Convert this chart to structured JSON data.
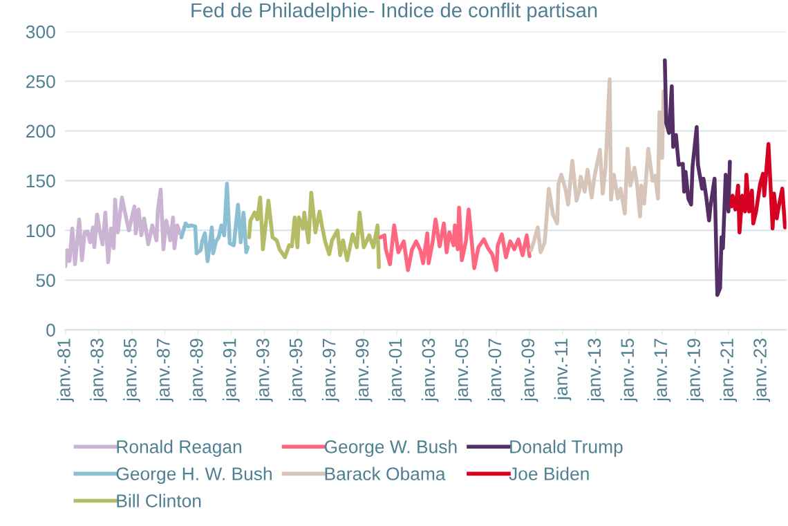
{
  "chart_data": {
    "type": "line",
    "title": "Fed de Philadelphie- Indice de conflit partisan",
    "ylim": [
      0,
      300
    ],
    "yticks": [
      0,
      50,
      100,
      150,
      200,
      250,
      300
    ],
    "xlim": [
      "1981-01",
      "2024-07"
    ],
    "xticks": [
      {
        "value": "1981-01",
        "label": "janv.-81"
      },
      {
        "value": "1983-01",
        "label": "janv.-83"
      },
      {
        "value": "1985-01",
        "label": "janv.-85"
      },
      {
        "value": "1987-01",
        "label": "janv.-87"
      },
      {
        "value": "1989-01",
        "label": "janv.-89"
      },
      {
        "value": "1991-01",
        "label": "janv.-91"
      },
      {
        "value": "1993-01",
        "label": "janv.-93"
      },
      {
        "value": "1995-01",
        "label": "janv.-95"
      },
      {
        "value": "1997-01",
        "label": "janv.-97"
      },
      {
        "value": "1999-01",
        "label": "janv.-99"
      },
      {
        "value": "2001-01",
        "label": "janv.-01"
      },
      {
        "value": "2003-01",
        "label": "janv.-03"
      },
      {
        "value": "2005-01",
        "label": "janv.-05"
      },
      {
        "value": "2007-01",
        "label": "janv.-07"
      },
      {
        "value": "2009-01",
        "label": "janv.-09"
      },
      {
        "value": "2011-01",
        "label": "janv.-11"
      },
      {
        "value": "2013-01",
        "label": "janv.-13"
      },
      {
        "value": "2015-01",
        "label": "janv.-15"
      },
      {
        "value": "2017-01",
        "label": "janv.-17"
      },
      {
        "value": "2019-01",
        "label": "janv.-19"
      },
      {
        "value": "2021-01",
        "label": "janv.-21"
      },
      {
        "value": "2023-01",
        "label": "janv.-23"
      }
    ],
    "grid": "y",
    "legend": "bottom",
    "marker": "none",
    "line_style": "solid",
    "series": [
      {
        "name": "Ronald Reagan",
        "color": "#cbb3d4",
        "x": [
          "1981-01",
          "1981-02",
          "1981-04",
          "1981-06",
          "1981-08",
          "1981-11",
          "1982-01",
          "1982-03",
          "1982-05",
          "1982-07",
          "1982-09",
          "1982-10",
          "1982-12",
          "1983-02",
          "1983-04",
          "1983-06",
          "1983-08",
          "1983-10",
          "1983-12",
          "1984-01",
          "1984-03",
          "1984-06",
          "1984-08",
          "1984-11",
          "1985-03",
          "1985-04",
          "1985-06",
          "1985-08",
          "1985-10",
          "1986-01",
          "1986-04",
          "1986-07",
          "1986-08",
          "1986-10",
          "1986-12",
          "1987-02",
          "1987-05",
          "1987-07",
          "1987-08",
          "1987-10",
          "1987-12"
        ],
        "values": [
          64,
          80,
          69,
          102,
          66,
          111,
          70,
          98,
          99,
          88,
          103,
          83,
          116,
          98,
          86,
          118,
          68,
          102,
          82,
          131,
          98,
          133,
          119,
          100,
          124,
          97,
          121,
          95,
          112,
          86,
          105,
          90,
          121,
          141,
          81,
          110,
          90,
          113,
          82,
          105,
          97
        ]
      },
      {
        "name": "George H. W. Bush",
        "color": "#8bbfd1",
        "x": [
          "1988-01",
          "1988-04",
          "1988-06",
          "1988-08",
          "1988-11",
          "1988-12",
          "1989-03",
          "1989-04",
          "1989-06",
          "1989-08",
          "1989-11",
          "1989-12",
          "1990-02",
          "1990-04",
          "1990-06",
          "1990-08",
          "1990-10",
          "1990-12",
          "1991-03",
          "1991-06",
          "1991-08",
          "1991-10",
          "1991-12",
          "1992-01"
        ],
        "values": [
          93,
          107,
          104,
          105,
          104,
          77,
          80,
          89,
          97,
          69,
          103,
          77,
          89,
          93,
          105,
          95,
          147,
          87,
          85,
          126,
          88,
          118,
          78,
          83
        ]
      },
      {
        "name": "Bill Clinton",
        "color": "#b4bd65",
        "x": [
          "1992-02",
          "1992-03",
          "1992-06",
          "1992-08",
          "1992-10",
          "1992-12",
          "1993-04",
          "1993-07",
          "1993-10",
          "1993-12",
          "1994-04",
          "1994-07",
          "1994-09",
          "1994-11",
          "1995-01",
          "1995-02",
          "1995-05",
          "1995-06",
          "1995-09",
          "1995-11",
          "1996-02",
          "1996-05",
          "1996-07",
          "1996-09",
          "1996-12",
          "1997-02",
          "1997-06",
          "1997-08",
          "1997-10",
          "1998-01",
          "1998-05",
          "1998-08",
          "1998-10",
          "1999-01",
          "1999-05",
          "1999-08",
          "1999-11",
          "1999-12"
        ],
        "values": [
          93,
          110,
          118,
          111,
          133,
          81,
          130,
          93,
          90,
          81,
          73,
          85,
          84,
          113,
          83,
          113,
          102,
          118,
          88,
          138,
          98,
          119,
          103,
          89,
          76,
          90,
          100,
          75,
          90,
          70,
          96,
          83,
          118,
          83,
          95,
          83,
          105,
          63
        ]
      },
      {
        "name": "George W. Bush",
        "color": "#ff6680",
        "x": [
          "2000-01",
          "2000-04",
          "2000-05",
          "2000-08",
          "2000-11",
          "2001-02",
          "2001-06",
          "2001-09",
          "2001-12",
          "2002-03",
          "2002-06",
          "2002-08",
          "2002-11",
          "2002-12",
          "2003-03",
          "2003-05",
          "2003-08",
          "2003-11",
          "2004-01",
          "2004-03",
          "2004-06",
          "2004-07",
          "2004-09",
          "2004-10",
          "2004-12",
          "2005-03",
          "2005-05",
          "2005-09",
          "2005-12",
          "2006-04",
          "2006-07",
          "2006-10",
          "2007-01",
          "2007-02",
          "2007-05",
          "2007-08",
          "2007-11",
          "2008-02",
          "2008-05",
          "2008-08",
          "2008-11",
          "2009-01"
        ],
        "values": [
          93,
          95,
          81,
          66,
          105,
          78,
          89,
          60,
          81,
          89,
          80,
          67,
          97,
          67,
          89,
          111,
          84,
          107,
          78,
          98,
          85,
          105,
          81,
          123,
          70,
          89,
          121,
          62,
          83,
          91,
          82,
          76,
          60,
          85,
          96,
          73,
          89,
          81,
          91,
          75,
          95,
          74
        ]
      },
      {
        "name": "Barack Obama",
        "color": "#d6c5b8",
        "x": [
          "2009-02",
          "2009-04",
          "2009-07",
          "2009-09",
          "2009-12",
          "2010-03",
          "2010-06",
          "2010-09",
          "2010-10",
          "2010-12",
          "2011-03",
          "2011-05",
          "2011-08",
          "2011-11",
          "2012-01",
          "2012-02",
          "2012-05",
          "2012-07",
          "2012-10",
          "2012-12",
          "2013-04",
          "2013-06",
          "2013-08",
          "2013-11",
          "2013-12",
          "2014-02",
          "2014-05",
          "2014-07",
          "2014-10",
          "2014-12",
          "2015-02",
          "2015-05",
          "2015-07",
          "2015-09",
          "2015-10",
          "2015-12",
          "2016-03",
          "2016-06",
          "2016-08",
          "2016-10",
          "2016-11",
          "2017-01",
          "2017-02"
        ],
        "values": [
          80,
          88,
          103,
          78,
          88,
          142,
          116,
          107,
          147,
          156,
          142,
          126,
          170,
          130,
          140,
          154,
          139,
          161,
          133,
          154,
          181,
          137,
          163,
          252,
          131,
          156,
          132,
          142,
          117,
          182,
          145,
          163,
          145,
          114,
          145,
          127,
          182,
          150,
          155,
          132,
          219,
          173,
          240
        ]
      },
      {
        "name": "Donald Trump",
        "color": "#542f66",
        "x": [
          "2017-03",
          "2017-04",
          "2017-06",
          "2017-08",
          "2017-09",
          "2017-11",
          "2018-01",
          "2018-04",
          "2018-05",
          "2018-06",
          "2018-08",
          "2018-10",
          "2018-11",
          "2019-02",
          "2019-03",
          "2019-06",
          "2019-07",
          "2019-09",
          "2019-11",
          "2019-12",
          "2020-03",
          "2020-05",
          "2020-07",
          "2020-08",
          "2020-09",
          "2020-11",
          "2021-01",
          "2021-02"
        ],
        "values": [
          271,
          208,
          198,
          245,
          184,
          196,
          166,
          167,
          139,
          159,
          132,
          126,
          164,
          204,
          166,
          142,
          152,
          133,
          110,
          124,
          152,
          35,
          42,
          93,
          82,
          156,
          119,
          169
        ]
      },
      {
        "name": "Joe Biden",
        "color": "#d60023",
        "x": [
          "2021-03",
          "2021-04",
          "2021-06",
          "2021-08",
          "2021-09",
          "2021-11",
          "2022-01",
          "2022-02",
          "2022-04",
          "2022-06",
          "2022-07",
          "2022-09",
          "2022-12",
          "2023-02",
          "2023-03",
          "2023-06",
          "2023-09",
          "2023-10",
          "2023-12",
          "2024-01",
          "2024-04",
          "2024-06"
        ],
        "values": [
          124,
          135,
          121,
          145,
          98,
          135,
          119,
          156,
          119,
          140,
          107,
          119,
          147,
          157,
          135,
          187,
          102,
          137,
          112,
          121,
          142,
          103
        ]
      }
    ]
  }
}
